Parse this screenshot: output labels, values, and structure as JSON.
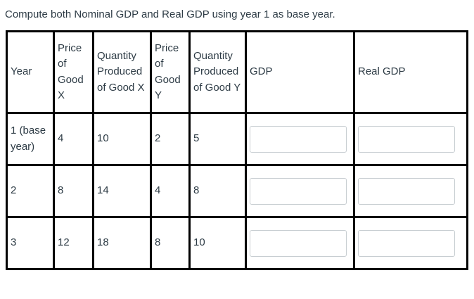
{
  "page": {
    "instruction": "Compute both Nominal GDP and Real GDP using year 1 as base year."
  },
  "table": {
    "columns": [
      {
        "label": "Year"
      },
      {
        "label": "Price of Good X"
      },
      {
        "label": "Quantity Produced of Good X"
      },
      {
        "label": "Price of Good Y"
      },
      {
        "label": "Quantity Produced of Good Y"
      },
      {
        "label": "GDP"
      },
      {
        "label": "Real GDP"
      }
    ],
    "rows": [
      {
        "year": "1 (base year)",
        "price_x": "4",
        "qty_x": "10",
        "price_y": "2",
        "qty_y": "5",
        "gdp_value": "",
        "real_gdp_value": ""
      },
      {
        "year": "2",
        "price_x": "8",
        "qty_x": "14",
        "price_y": "4",
        "qty_y": "8",
        "gdp_value": "",
        "real_gdp_value": ""
      },
      {
        "year": "3",
        "price_x": "12",
        "qty_x": "18",
        "price_y": "8",
        "qty_y": "10",
        "gdp_value": "",
        "real_gdp_value": ""
      }
    ]
  }
}
